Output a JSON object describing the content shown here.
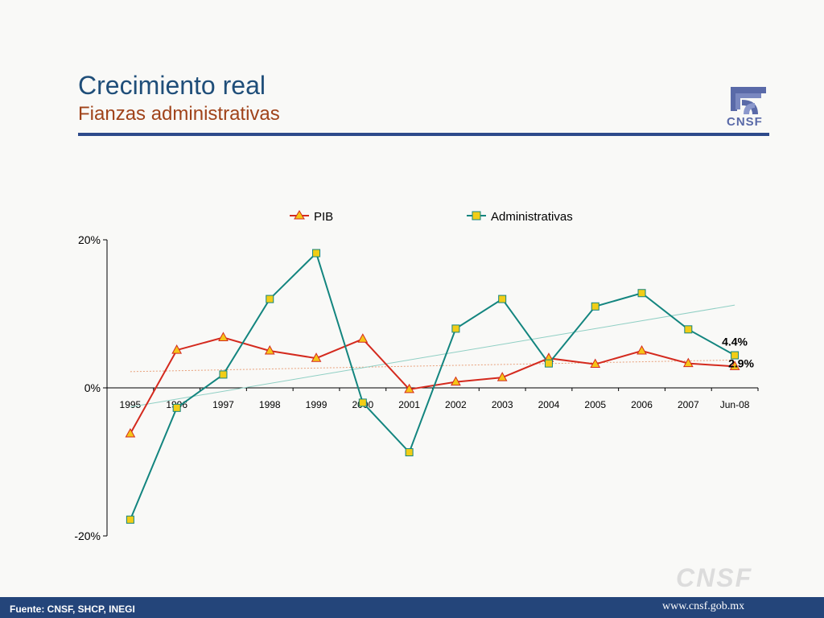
{
  "header": {
    "title": "Crecimiento real",
    "subtitle": "Fianzas administrativas"
  },
  "logo": {
    "text": "CNSF",
    "icon": "cnsf-logo-icon",
    "color": "#5a6aa8"
  },
  "watermark": {
    "text": "CNSF"
  },
  "footer": {
    "source": "Fuente: CNSF, SHCP, INEGI",
    "url": "www.cnsf.gob.mx"
  },
  "colors": {
    "title": "#1f4e79",
    "subtitle": "#a0431a",
    "rule": "#2d4a8a",
    "footer": "#24457a"
  },
  "chart_data": {
    "type": "line",
    "categories": [
      "1995",
      "1996",
      "1997",
      "1998",
      "1999",
      "2000",
      "2001",
      "2002",
      "2003",
      "2004",
      "2005",
      "2006",
      "2007",
      "Jun-08"
    ],
    "series": [
      {
        "name": "PIB",
        "color": "#d42a1e",
        "marker": "triangle",
        "marker_color": "#f5c518",
        "values": [
          -6.2,
          5.1,
          6.8,
          5.0,
          4.0,
          6.6,
          -0.2,
          0.8,
          1.4,
          4.0,
          3.2,
          5.0,
          3.3,
          2.9
        ],
        "end_label": "2.9%"
      },
      {
        "name": "Administrativas",
        "color": "#13857f",
        "marker": "square",
        "marker_color": "#f2cd16",
        "values": [
          -17.8,
          -2.7,
          1.8,
          12.0,
          18.2,
          -2.0,
          -8.7,
          8.0,
          12.0,
          3.3,
          11.0,
          12.8,
          7.9,
          4.4
        ],
        "end_label": "4.4%"
      }
    ],
    "trendlines": [
      {
        "series": "PIB",
        "color": "#e8a07a",
        "style": "dotted"
      },
      {
        "series": "Administrativas",
        "color": "#8fcfc4",
        "style": "solid"
      }
    ],
    "ylim": [
      -20,
      20
    ],
    "yticks": [
      "20%",
      "0%",
      "-20%"
    ],
    "ytick_values": [
      20,
      0,
      -20
    ],
    "legend": "top",
    "grid": false
  }
}
